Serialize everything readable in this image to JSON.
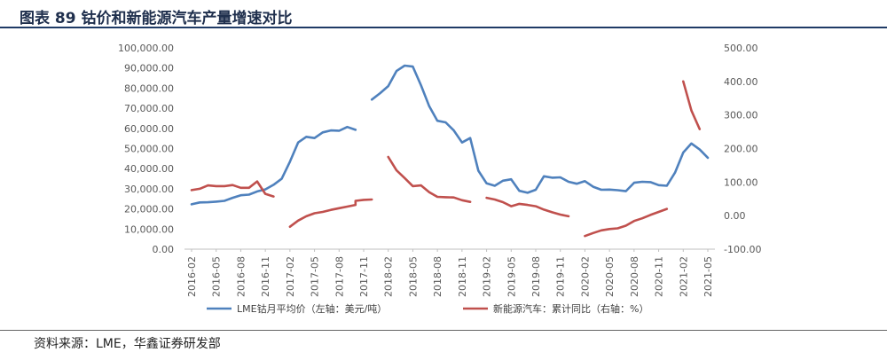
{
  "title": "图表 89 钴价和新能源汽车产量增速对比",
  "source": "资料来源：LME，华鑫证券研发部",
  "colors": {
    "cobalt": "#4f81bd",
    "nev": "#c0504d",
    "axis": "#bfbfbf",
    "text": "#595959"
  },
  "chart_data": {
    "type": "line",
    "title": "",
    "legend_position": "bottom",
    "grid": false,
    "x_tick_labels": [
      "2016-02",
      "2016-05",
      "2016-08",
      "2016-11",
      "2017-02",
      "2017-05",
      "2017-08",
      "2017-11",
      "2018-02",
      "2018-05",
      "2018-08",
      "2018-11",
      "2019-02",
      "2019-05",
      "2019-08",
      "2019-11",
      "2020-02",
      "2020-05",
      "2020-08",
      "2020-11",
      "2021-02",
      "2021-05"
    ],
    "y_left": {
      "min": 0,
      "max": 100000,
      "step": 10000,
      "tick_labels": [
        "0.00",
        "10,000.00",
        "20,000.00",
        "30,000.00",
        "40,000.00",
        "50,000.00",
        "60,000.00",
        "70,000.00",
        "80,000.00",
        "90,000.00",
        "100,000.00"
      ]
    },
    "y_right": {
      "min": -100,
      "max": 500,
      "step": 100,
      "tick_labels": [
        "-100.00",
        "0.00",
        "100.00",
        "200.00",
        "300.00",
        "400.00",
        "500.00"
      ]
    },
    "series": [
      {
        "name": "LME钴月平均价（左轴：美元/吨）",
        "axis": "left",
        "segments": [
          [
            [
              "2016-02",
              22300
            ],
            [
              "2016-03",
              23200
            ],
            [
              "2016-04",
              23300
            ],
            [
              "2016-05",
              23600
            ],
            [
              "2016-06",
              24000
            ],
            [
              "2016-07",
              25500
            ],
            [
              "2016-08",
              26800
            ],
            [
              "2016-09",
              27100
            ],
            [
              "2016-10",
              28700
            ],
            [
              "2016-11",
              29700
            ],
            [
              "2016-12",
              32000
            ],
            [
              "2017-01",
              35000
            ],
            [
              "2017-02",
              43500
            ],
            [
              "2017-03",
              53000
            ],
            [
              "2017-04",
              55800
            ],
            [
              "2017-05",
              55200
            ],
            [
              "2017-06",
              58000
            ],
            [
              "2017-07",
              59000
            ],
            [
              "2017-08",
              58800
            ],
            [
              "2017-09",
              60700
            ],
            [
              "2017-10",
              59300
            ]
          ],
          [
            [
              "2017-12",
              74300
            ],
            [
              "2018-01",
              77500
            ],
            [
              "2018-02",
              81000
            ],
            [
              "2018-03",
              88500
            ],
            [
              "2018-04",
              91200
            ],
            [
              "2018-05",
              90700
            ],
            [
              "2018-06",
              81300
            ],
            [
              "2018-07",
              71000
            ],
            [
              "2018-08",
              63800
            ],
            [
              "2018-09",
              63000
            ],
            [
              "2018-10",
              59000
            ],
            [
              "2018-11",
              53000
            ],
            [
              "2018-12",
              55200
            ],
            [
              "2019-01",
              39000
            ],
            [
              "2019-02",
              32700
            ],
            [
              "2019-03",
              31500
            ],
            [
              "2019-04",
              34000
            ],
            [
              "2019-05",
              34700
            ],
            [
              "2019-06",
              29000
            ],
            [
              "2019-07",
              28000
            ],
            [
              "2019-08",
              29500
            ],
            [
              "2019-09",
              36200
            ],
            [
              "2019-10",
              35500
            ],
            [
              "2019-11",
              35700
            ],
            [
              "2019-12",
              33500
            ],
            [
              "2020-01",
              32500
            ],
            [
              "2020-02",
              33800
            ],
            [
              "2020-03",
              31000
            ],
            [
              "2020-04",
              29500
            ],
            [
              "2020-05",
              29600
            ],
            [
              "2020-06",
              29300
            ],
            [
              "2020-07",
              28800
            ],
            [
              "2020-08",
              33000
            ],
            [
              "2020-09",
              33500
            ],
            [
              "2020-10",
              33300
            ],
            [
              "2020-11",
              31800
            ],
            [
              "2020-12",
              31500
            ],
            [
              "2021-01",
              38000
            ],
            [
              "2021-02",
              48000
            ],
            [
              "2021-03",
              52500
            ],
            [
              "2021-04",
              49500
            ],
            [
              "2021-05",
              45400
            ]
          ]
        ]
      },
      {
        "name": "新能源汽车：累计同比（右轴：%）",
        "axis": "right",
        "segments": [
          [
            [
              "2016-02",
              76
            ],
            [
              "2016-03",
              80
            ],
            [
              "2016-04",
              90
            ],
            [
              "2016-05",
              88
            ],
            [
              "2016-06",
              88
            ],
            [
              "2016-07",
              91
            ],
            [
              "2016-08",
              83
            ],
            [
              "2016-09",
              83
            ],
            [
              "2016-10",
              102
            ],
            [
              "2016-11",
              65
            ],
            [
              "2016-12",
              57
            ]
          ],
          [
            [
              "2017-02",
              -33
            ],
            [
              "2017-03",
              -15
            ],
            [
              "2017-04",
              -2
            ],
            [
              "2017-05",
              7
            ],
            [
              "2017-06",
              11
            ],
            [
              "2017-07",
              17
            ],
            [
              "2017-08",
              22
            ],
            [
              "2017-09",
              27
            ],
            [
              "2017-10",
              32
            ],
            [
              "2017-10",
              44
            ],
            [
              "2017-11",
              47
            ],
            [
              "2017-12",
              48
            ]
          ],
          [
            [
              "2018-02",
              175
            ],
            [
              "2018-03",
              135
            ],
            [
              "2018-04",
              112
            ],
            [
              "2018-05",
              88
            ],
            [
              "2018-06",
              90
            ],
            [
              "2018-07",
              70
            ],
            [
              "2018-08",
              56
            ],
            [
              "2018-09",
              55
            ],
            [
              "2018-10",
              54
            ],
            [
              "2018-11",
              46
            ],
            [
              "2018-12",
              41
            ]
          ],
          [
            [
              "2019-02",
              53
            ],
            [
              "2019-03",
              48
            ],
            [
              "2019-04",
              40
            ],
            [
              "2019-05",
              28
            ],
            [
              "2019-06",
              35
            ],
            [
              "2019-07",
              32
            ],
            [
              "2019-08",
              28
            ],
            [
              "2019-09",
              18
            ],
            [
              "2019-10",
              10
            ],
            [
              "2019-11",
              3
            ],
            [
              "2019-12",
              -2
            ]
          ],
          [
            [
              "2020-02",
              -61
            ],
            [
              "2020-03",
              -52
            ],
            [
              "2020-04",
              -44
            ],
            [
              "2020-05",
              -40
            ],
            [
              "2020-06",
              -38
            ],
            [
              "2020-07",
              -30
            ],
            [
              "2020-08",
              -16
            ],
            [
              "2020-09",
              -8
            ],
            [
              "2020-10",
              2
            ],
            [
              "2020-11",
              11
            ],
            [
              "2020-12",
              20
            ]
          ],
          [
            [
              "2021-02",
              400
            ],
            [
              "2021-03",
              313
            ],
            [
              "2021-04",
              258
            ]
          ]
        ]
      }
    ]
  }
}
